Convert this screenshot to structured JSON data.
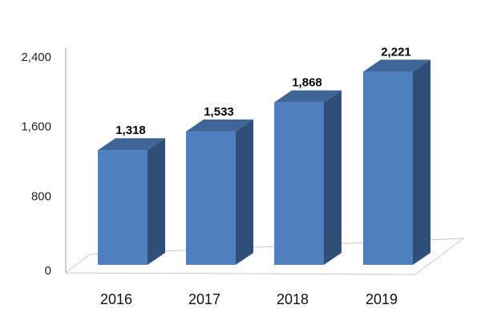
{
  "chart_data": {
    "type": "bar",
    "categories": [
      "2016",
      "2017",
      "2018",
      "2019"
    ],
    "values": [
      1318,
      1533,
      1868,
      2221
    ],
    "value_labels": [
      "1,318",
      "1,533",
      "1,868",
      "2,221"
    ],
    "y_ticks": [
      0,
      800,
      1600,
      2400
    ],
    "y_tick_labels": [
      "0",
      "800",
      "1,600",
      "2,400"
    ],
    "ylim": [
      0,
      2400
    ],
    "grid": false,
    "legend": "none",
    "style": "3d-column",
    "colors": {
      "bar_front": "#4f7fbf",
      "bar_top": "#3f6496",
      "bar_side": "#2f4e78",
      "floor": "#ffffff",
      "floor_edge": "#c8c8c8",
      "axis": "#9a9a9a"
    }
  }
}
